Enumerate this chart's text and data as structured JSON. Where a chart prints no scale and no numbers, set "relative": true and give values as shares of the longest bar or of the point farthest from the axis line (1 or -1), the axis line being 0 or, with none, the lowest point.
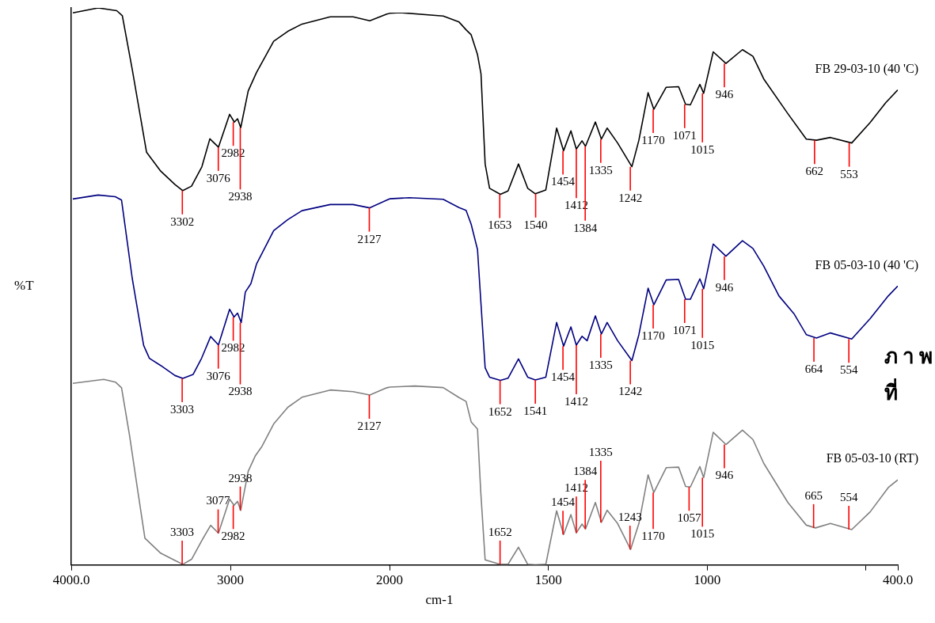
{
  "chart_data": [
    {
      "type": "line",
      "relative": true,
      "ylabel": "%T",
      "marker": "none",
      "xlim": [
        4000,
        2000
      ],
      "xticks": [
        {
          "value": 4000,
          "label": "4000.0"
        },
        3000,
        2000
      ],
      "series": [
        {
          "color": "#000000",
          "x": [
            3990,
            3831,
            3714,
            3679,
            3617,
            3562,
            3527,
            3438,
            3348,
            3299,
            3244,
            3179,
            3129,
            3075,
            3005,
            2975,
            2955,
            2935,
            2888,
            2836,
            2728,
            2639,
            2550,
            2373,
            2229,
            2124,
            2017,
            2000
          ],
          "values": [
            0.991,
            1,
            0.995,
            0.986,
            0.89,
            0.799,
            0.741,
            0.707,
            0.683,
            0.672,
            0.68,
            0.715,
            0.765,
            0.75,
            0.809,
            0.795,
            0.801,
            0.785,
            0.851,
            0.884,
            0.94,
            0.958,
            0.971,
            0.984,
            0.984,
            0.977,
            0.989,
            0.99
          ]
        },
        {
          "color": "#000080",
          "x": [
            3990,
            3831,
            3723,
            3684,
            3617,
            3598,
            3545,
            3509,
            3438,
            3348,
            3299,
            3234,
            3181,
            3124,
            3075,
            3005,
            2977,
            2955,
            2932,
            2906,
            2871,
            2836,
            2728,
            2639,
            2550,
            2373,
            2229,
            2124,
            2017,
            2000
          ],
          "values": [
            0.657,
            0.664,
            0.661,
            0.655,
            0.515,
            0.483,
            0.394,
            0.371,
            0.358,
            0.34,
            0.335,
            0.342,
            0.371,
            0.41,
            0.395,
            0.459,
            0.445,
            0.452,
            0.435,
            0.49,
            0.505,
            0.54,
            0.6,
            0.62,
            0.636,
            0.647,
            0.647,
            0.641,
            0.655,
            0.657
          ]
        },
        {
          "color": "#808080",
          "x": [
            3990,
            3796,
            3721,
            3684,
            3634,
            3582,
            3537,
            3438,
            3348,
            3299,
            3244,
            3181,
            3124,
            3075,
            3005,
            2977,
            2955,
            2935,
            2888,
            2843,
            2801,
            2728,
            2639,
            2550,
            2373,
            2229,
            2124,
            2017,
            2000
          ],
          "values": [
            0.326,
            0.333,
            0.328,
            0.318,
            0.233,
            0.133,
            0.048,
            0.021,
            0.008,
            0.001,
            0.01,
            0.043,
            0.071,
            0.057,
            0.118,
            0.107,
            0.114,
            0.098,
            0.168,
            0.196,
            0.213,
            0.253,
            0.283,
            0.301,
            0.314,
            0.311,
            0.305,
            0.318,
            0.319
          ]
        }
      ],
      "annotations": [
        {
          "text": "3302",
          "x": 3302,
          "y": 0.672
        },
        {
          "text": "3076",
          "x": 3076,
          "y": 0.75
        },
        {
          "text": "2982",
          "x": 2982,
          "y": 0.795
        },
        {
          "text": "2938",
          "x": 2938,
          "y": 0.785
        },
        {
          "text": "3303",
          "x": 3303,
          "y": 0.335
        },
        {
          "text": "3076",
          "x": 3076,
          "y": 0.395
        },
        {
          "text": "2982",
          "x": 2982,
          "y": 0.445
        },
        {
          "text": "2938",
          "x": 2938,
          "y": 0.435
        },
        {
          "text": "2127",
          "x": 2127,
          "y": 0.641
        },
        {
          "text": "3303",
          "x": 3303,
          "y": 0.001
        },
        {
          "text": "3077",
          "x": 3077,
          "y": 0.057
        },
        {
          "text": "2982",
          "x": 2982,
          "y": 0.107
        },
        {
          "text": "2938",
          "x": 2938,
          "y": 0.098
        },
        {
          "text": "2127",
          "x": 2127,
          "y": 0.305
        }
      ]
    },
    {
      "type": "line",
      "relative": true,
      "xlabel": "cm-1",
      "marker": "none",
      "xlim": [
        2000,
        400
      ],
      "xticks": [
        1500,
        1000,
        {
          "value": 500,
          "label": null
        },
        {
          "value": 400,
          "label": "400.0"
        }
      ],
      "series": [
        {
          "name": "FB 29-03-10 (40 'C)",
          "color": "#000000",
          "x": [
            2000,
            1965,
            1831,
            1781,
            1759,
            1743,
            1723,
            1712,
            1699,
            1685,
            1651,
            1627,
            1594,
            1565,
            1541,
            1508,
            1474,
            1452,
            1429,
            1412,
            1394,
            1383,
            1352,
            1333,
            1315,
            1282,
            1237,
            1215,
            1186,
            1168,
            1129,
            1090,
            1068,
            1053,
            1023,
            1011,
            981,
            941,
            889,
            856,
            822,
            746,
            688,
            656,
            612,
            545,
            487,
            438,
            400
          ],
          "values": [
            0.999,
            1,
            0.994,
            0.983,
            0.969,
            0.96,
            0.924,
            0.889,
            0.726,
            0.682,
            0.671,
            0.677,
            0.726,
            0.682,
            0.672,
            0.679,
            0.791,
            0.75,
            0.786,
            0.753,
            0.768,
            0.758,
            0.802,
            0.771,
            0.791,
            0.764,
            0.721,
            0.769,
            0.855,
            0.825,
            0.865,
            0.866,
            0.834,
            0.833,
            0.87,
            0.854,
            0.929,
            0.908,
            0.933,
            0.921,
            0.88,
            0.817,
            0.771,
            0.769,
            0.774,
            0.764,
            0.801,
            0.837,
            0.86
          ]
        },
        {
          "name": "FB 05-03-10 (40 'C)",
          "color": "#000080",
          "x": [
            2000,
            1938,
            1831,
            1781,
            1759,
            1743,
            1723,
            1713,
            1699,
            1685,
            1651,
            1627,
            1594,
            1565,
            1541,
            1508,
            1474,
            1452,
            1429,
            1412,
            1394,
            1378,
            1352,
            1333,
            1315,
            1282,
            1237,
            1215,
            1186,
            1168,
            1129,
            1090,
            1068,
            1053,
            1023,
            1011,
            981,
            941,
            889,
            856,
            822,
            774,
            727,
            688,
            656,
            612,
            545,
            487,
            430,
            400
          ],
          "values": [
            0.663,
            0.665,
            0.662,
            0.647,
            0.642,
            0.617,
            0.571,
            0.481,
            0.357,
            0.34,
            0.334,
            0.338,
            0.373,
            0.34,
            0.335,
            0.34,
            0.439,
            0.396,
            0.431,
            0.398,
            0.414,
            0.406,
            0.451,
            0.418,
            0.439,
            0.406,
            0.37,
            0.417,
            0.501,
            0.471,
            0.516,
            0.517,
            0.481,
            0.481,
            0.518,
            0.5,
            0.581,
            0.559,
            0.587,
            0.573,
            0.541,
            0.487,
            0.455,
            0.417,
            0.411,
            0.42,
            0.409,
            0.446,
            0.487,
            0.505
          ]
        },
        {
          "name": "FB 05-03-10 (RT)",
          "color": "#808080",
          "x": [
            2000,
            1920,
            1831,
            1781,
            1759,
            1743,
            1723,
            1713,
            1699,
            1651,
            1627,
            1594,
            1565,
            1541,
            1508,
            1474,
            1452,
            1429,
            1412,
            1394,
            1383,
            1352,
            1333,
            1315,
            1282,
            1241,
            1215,
            1186,
            1168,
            1129,
            1090,
            1068,
            1053,
            1023,
            1011,
            981,
            941,
            889,
            856,
            822,
            746,
            688,
            659,
            612,
            545,
            487,
            430,
            400
          ],
          "values": [
            0.322,
            0.324,
            0.321,
            0.303,
            0.296,
            0.259,
            0.246,
            0.134,
            0.009,
            0.001,
            0.001,
            0.032,
            0.001,
            0,
            0.001,
            0.098,
            0.055,
            0.091,
            0.058,
            0.074,
            0.065,
            0.113,
            0.077,
            0.099,
            0.075,
            0.028,
            0.075,
            0.163,
            0.131,
            0.176,
            0.177,
            0.142,
            0.141,
            0.178,
            0.158,
            0.24,
            0.218,
            0.244,
            0.227,
            0.184,
            0.113,
            0.072,
            0.067,
            0.075,
            0.064,
            0.096,
            0.14,
            0.154
          ]
        }
      ],
      "annotations": [
        {
          "text": "1653",
          "x": 1653,
          "y": 0.671
        },
        {
          "text": "1540",
          "x": 1540,
          "y": 0.672
        },
        {
          "text": "1454",
          "x": 1454,
          "y": 0.75
        },
        {
          "text": "1412",
          "x": 1412,
          "y": 0.753
        },
        {
          "text": "1384",
          "x": 1384,
          "y": 0.758
        },
        {
          "text": "1335",
          "x": 1335,
          "y": 0.771
        },
        {
          "text": "1242",
          "x": 1242,
          "y": 0.721
        },
        {
          "text": "1170",
          "x": 1170,
          "y": 0.825
        },
        {
          "text": "1071",
          "x": 1071,
          "y": 0.834
        },
        {
          "text": "1015",
          "x": 1015,
          "y": 0.854
        },
        {
          "text": "946",
          "x": 946,
          "y": 0.908
        },
        {
          "text": "662",
          "x": 662,
          "y": 0.769
        },
        {
          "text": "553",
          "x": 553,
          "y": 0.764
        },
        {
          "text": "1652",
          "x": 1652,
          "y": 0.334
        },
        {
          "text": "1541",
          "x": 1541,
          "y": 0.335
        },
        {
          "text": "1454",
          "x": 1454,
          "y": 0.396
        },
        {
          "text": "1412",
          "x": 1412,
          "y": 0.398
        },
        {
          "text": "1335",
          "x": 1335,
          "y": 0.418
        },
        {
          "text": "1242",
          "x": 1242,
          "y": 0.37
        },
        {
          "text": "1170",
          "x": 1170,
          "y": 0.471
        },
        {
          "text": "1071",
          "x": 1071,
          "y": 0.481
        },
        {
          "text": "1015",
          "x": 1015,
          "y": 0.5
        },
        {
          "text": "946",
          "x": 946,
          "y": 0.559
        },
        {
          "text": "664",
          "x": 664,
          "y": 0.411
        },
        {
          "text": "554",
          "x": 554,
          "y": 0.409
        },
        {
          "text": "1652",
          "x": 1652,
          "y": 0.001
        },
        {
          "text": "1454",
          "x": 1454,
          "y": 0.055
        },
        {
          "text": "1412",
          "x": 1412,
          "y": 0.058
        },
        {
          "text": "1384",
          "x": 1384,
          "y": 0.065
        },
        {
          "text": "1335",
          "x": 1335,
          "y": 0.077
        },
        {
          "text": "1243",
          "x": 1243,
          "y": 0.028
        },
        {
          "text": "1170",
          "x": 1170,
          "y": 0.131
        },
        {
          "text": "1057",
          "x": 1057,
          "y": 0.141
        },
        {
          "text": "1015",
          "x": 1015,
          "y": 0.158
        },
        {
          "text": "946",
          "x": 946,
          "y": 0.218
        },
        {
          "text": "665",
          "x": 665,
          "y": 0.067
        },
        {
          "text": "554",
          "x": 554,
          "y": 0.064
        },
        "ภาพที่"
      ]
    }
  ]
}
